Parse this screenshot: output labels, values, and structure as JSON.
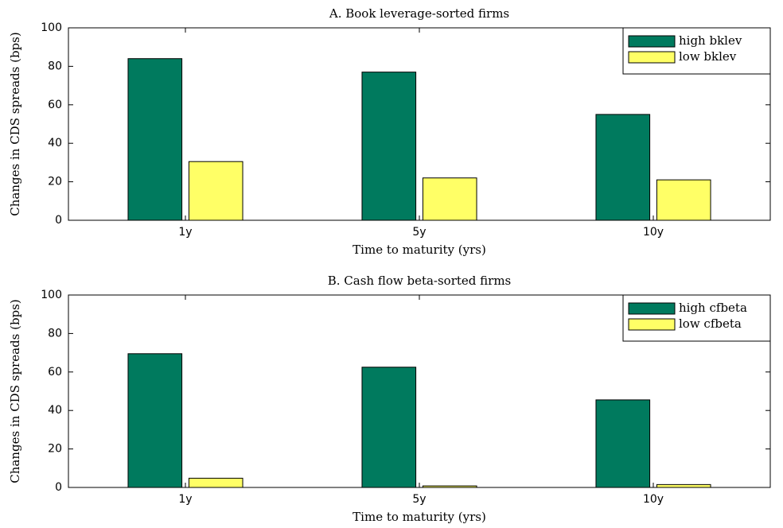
{
  "chart_data": [
    {
      "type": "bar",
      "title": "A. Book leverage-sorted firms",
      "xlabel": "Time to maturity (yrs)",
      "ylabel": "Changes in CDS spreads (bps)",
      "categories": [
        "1y",
        "5y",
        "10y"
      ],
      "series": [
        {
          "name": "high bklev",
          "color": "#007a5e",
          "values": [
            84,
            77,
            55
          ]
        },
        {
          "name": "low bklev",
          "color": "#ffff66",
          "values": [
            30.5,
            22,
            21
          ]
        }
      ],
      "ylim": [
        0,
        100
      ],
      "yticks": [
        0,
        20,
        40,
        60,
        80,
        100
      ],
      "legend": "upper right"
    },
    {
      "type": "bar",
      "title": "B. Cash flow beta-sorted firms",
      "xlabel": "Time to maturity (yrs)",
      "ylabel": "Changes in CDS spreads (bps)",
      "categories": [
        "1y",
        "5y",
        "10y"
      ],
      "series": [
        {
          "name": "high cfbeta",
          "color": "#007a5e",
          "values": [
            69.5,
            62.5,
            45.5
          ]
        },
        {
          "name": "low cfbeta",
          "color": "#ffff66",
          "values": [
            4.8,
            0.8,
            1.5
          ]
        }
      ],
      "ylim": [
        0,
        100
      ],
      "yticks": [
        0,
        20,
        40,
        60,
        80,
        100
      ],
      "legend": "upper right"
    }
  ]
}
